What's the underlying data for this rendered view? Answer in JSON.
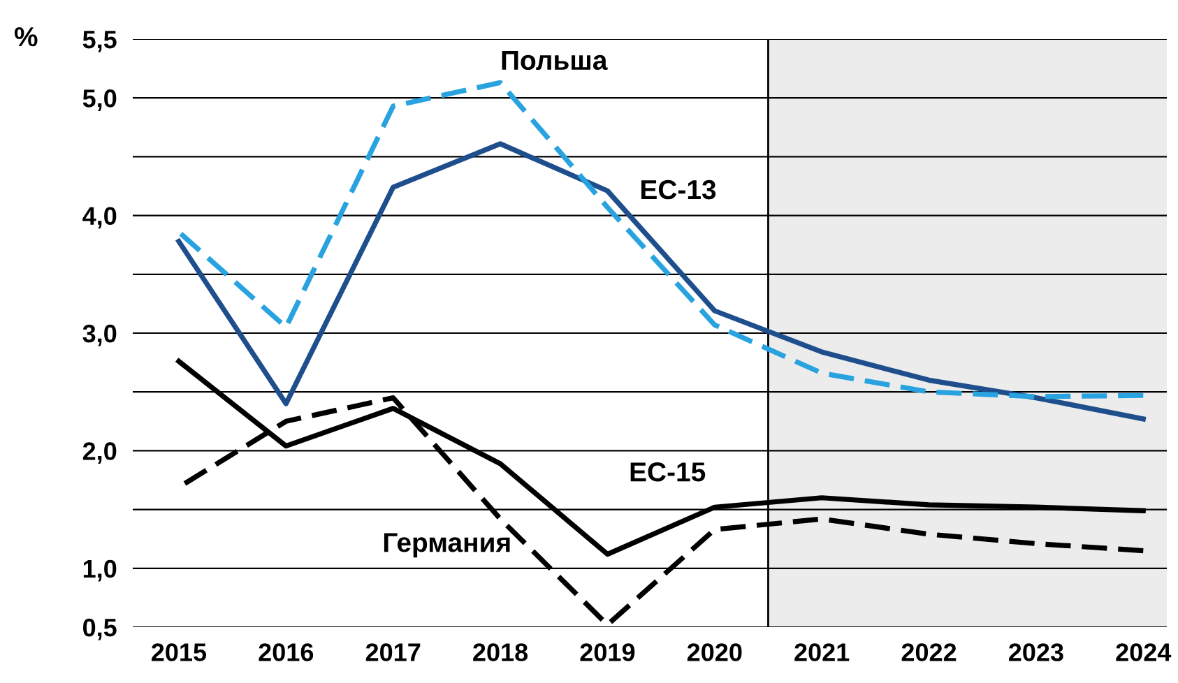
{
  "chart_data": {
    "type": "line",
    "ylabel": "%",
    "legend": false,
    "grid": "y",
    "x": [
      2015,
      2016,
      2017,
      2018,
      2019,
      2020,
      2021,
      2022,
      2023,
      2024
    ],
    "xlim": [
      2014.57,
      2024.22
    ],
    "xticks": [
      2015,
      2016,
      2017,
      2018,
      2019,
      2020,
      2021,
      2022,
      2023,
      2024
    ],
    "ylim": [
      0.5,
      5.5
    ],
    "yticks": [
      {
        "value": 0.5,
        "label": "0,5"
      },
      {
        "value": 1.0,
        "label": "1,0"
      },
      {
        "value": 1.5,
        "label": null
      },
      {
        "value": 2.0,
        "label": "2,0"
      },
      {
        "value": 2.5,
        "label": null
      },
      {
        "value": 3.0,
        "label": "3,0"
      },
      {
        "value": 3.5,
        "label": null
      },
      {
        "value": 4.0,
        "label": "4,0"
      },
      {
        "value": 4.5,
        "label": null
      },
      {
        "value": 5.0,
        "label": "5,0"
      },
      {
        "value": 5.5,
        "label": "5,5"
      }
    ],
    "series": [
      {
        "name": "ЕС-13",
        "color": "#1f4e8c",
        "line_style": "solid",
        "values": [
          3.78,
          2.4,
          4.24,
          4.61,
          4.21,
          3.19,
          2.84,
          2.6,
          2.45,
          2.27
        ]
      },
      {
        "name": "Польша",
        "color": "#29a3e0",
        "line_style": "dashed",
        "values": [
          3.86,
          3.05,
          4.93,
          5.13,
          4.07,
          3.07,
          2.66,
          2.5,
          2.46,
          2.47
        ]
      },
      {
        "name": "ЕС-15",
        "color": "#000000",
        "line_style": "solid",
        "values": [
          2.76,
          2.04,
          2.36,
          1.89,
          1.12,
          1.52,
          1.6,
          1.54,
          1.52,
          1.49
        ]
      },
      {
        "name": "Германия",
        "color": "#000000",
        "line_style": "dashed",
        "values": [
          1.69,
          2.25,
          2.45,
          1.42,
          0.52,
          1.33,
          1.42,
          1.29,
          1.21,
          1.15
        ]
      }
    ],
    "ref_lines": [
      {
        "axis": "x",
        "value": 2020.5,
        "color": "#000000"
      }
    ],
    "bands": [
      {
        "axis": "x",
        "from": 2020.5,
        "to": 2024.22,
        "color": "#ececec"
      }
    ]
  }
}
